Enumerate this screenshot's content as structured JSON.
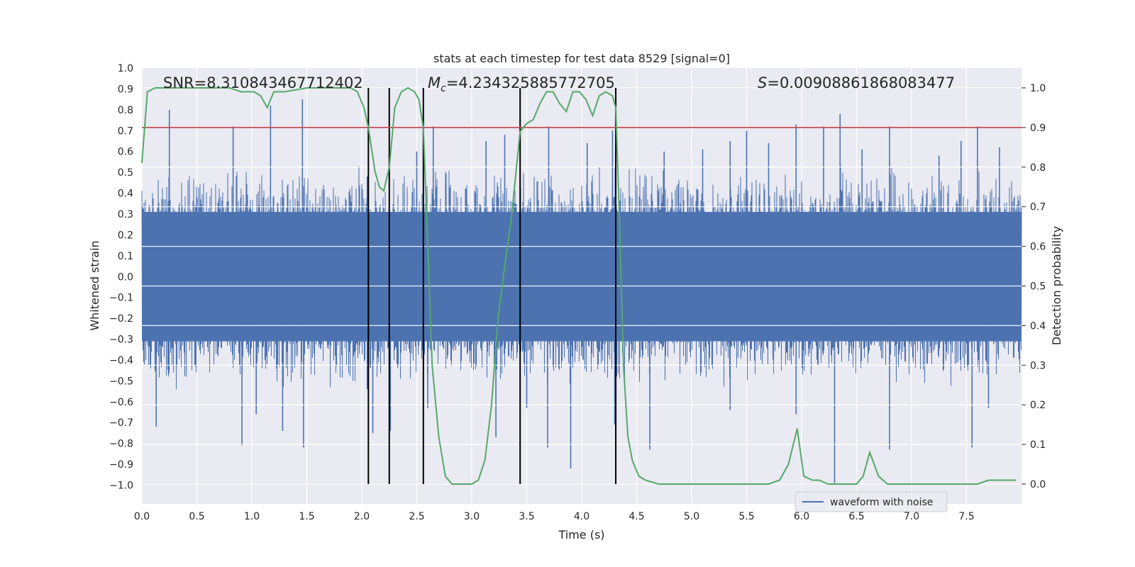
{
  "chart_data": {
    "type": "line",
    "title": "stats at each timestep for test data 8529 [signal=0]",
    "xlabel": "Time (s)",
    "ylabel": "Whitened strain",
    "y2label": "Detection probability",
    "xlim": [
      0.0,
      8.0
    ],
    "ylim": [
      -1.09,
      1.0
    ],
    "y2lim": [
      -0.05,
      1.05
    ],
    "grid": true,
    "x_ticks": [
      "0.0",
      "0.5",
      "1.0",
      "1.5",
      "2.0",
      "2.5",
      "3.0",
      "3.5",
      "4.0",
      "4.5",
      "5.0",
      "5.5",
      "6.0",
      "6.5",
      "7.0",
      "7.5"
    ],
    "y_ticks": [
      "1.0",
      "0.9",
      "0.8",
      "0.7",
      "0.6",
      "0.5",
      "0.4",
      "0.3",
      "0.2",
      "0.1",
      "0.0",
      "−0.1",
      "−0.2",
      "−0.3",
      "−0.4",
      "−0.5",
      "−0.6",
      "−0.7",
      "−0.8",
      "−0.9",
      "−1.0"
    ],
    "y2_ticks": [
      "1.0",
      "0.9",
      "0.8",
      "0.7",
      "0.6",
      "0.5",
      "0.4",
      "0.3",
      "0.2",
      "0.1",
      "0.0"
    ],
    "annotations": {
      "snr": "SNR=8.310843467712402",
      "mc_symbol": "M",
      "mc_sub": "c",
      "mc_value": "=4.234325885772705",
      "s_symbol": "S",
      "s_value": "=0.00908861868083477"
    },
    "legend": {
      "position": "lower-right",
      "entries": [
        "waveform with noise"
      ]
    },
    "threshold": {
      "value": 0.9,
      "axis": "y2",
      "color": "#c44e52"
    },
    "vertical_lines": [
      2.06,
      2.25,
      2.56,
      3.44,
      4.31
    ],
    "vline_color": "#000000",
    "series": [
      {
        "name": "waveform with noise",
        "axis": "y",
        "color": "#4c72b0",
        "envelope_typical": 0.33,
        "spikes_pos": [
          [
            0.25,
            0.8
          ],
          [
            0.83,
            0.72
          ],
          [
            1.17,
            0.82
          ],
          [
            1.46,
            0.85
          ],
          [
            2.05,
            0.48
          ],
          [
            2.5,
            0.6
          ],
          [
            2.65,
            0.72
          ],
          [
            3.13,
            0.65
          ],
          [
            3.3,
            0.68
          ],
          [
            3.7,
            0.72
          ],
          [
            4.05,
            0.64
          ],
          [
            4.28,
            0.7
          ],
          [
            4.75,
            0.6
          ],
          [
            5.1,
            0.61
          ],
          [
            5.35,
            0.65
          ],
          [
            5.5,
            0.7
          ],
          [
            5.7,
            0.64
          ],
          [
            5.95,
            0.73
          ],
          [
            6.2,
            0.72
          ],
          [
            6.35,
            0.78
          ],
          [
            6.55,
            0.61
          ],
          [
            6.8,
            0.72
          ],
          [
            7.25,
            0.58
          ],
          [
            7.45,
            0.65
          ],
          [
            7.6,
            0.72
          ],
          [
            7.8,
            0.62
          ]
        ],
        "spikes_neg": [
          [
            0.13,
            -0.72
          ],
          [
            0.91,
            -0.81
          ],
          [
            1.04,
            -0.66
          ],
          [
            1.28,
            -0.74
          ],
          [
            1.47,
            -0.82
          ],
          [
            2.05,
            -0.54
          ],
          [
            2.1,
            -0.75
          ],
          [
            2.26,
            -0.74
          ],
          [
            2.6,
            -0.63
          ],
          [
            3.22,
            -0.77
          ],
          [
            3.5,
            -0.63
          ],
          [
            3.69,
            -0.82
          ],
          [
            3.9,
            -0.92
          ],
          [
            4.3,
            -0.71
          ],
          [
            4.62,
            -0.83
          ],
          [
            5.35,
            -0.64
          ],
          [
            5.95,
            -0.66
          ],
          [
            6.3,
            -0.99
          ],
          [
            6.8,
            -0.83
          ],
          [
            7.55,
            -0.82
          ],
          [
            7.7,
            -0.63
          ]
        ]
      },
      {
        "name": "Detection probability",
        "axis": "y2",
        "color": "#55a868",
        "x": [
          0.0,
          0.05,
          0.12,
          0.2,
          0.4,
          0.6,
          0.8,
          0.9,
          0.96,
          1.02,
          1.08,
          1.14,
          1.2,
          1.3,
          1.5,
          1.7,
          1.9,
          1.96,
          2.02,
          2.06,
          2.12,
          2.16,
          2.2,
          2.25,
          2.3,
          2.36,
          2.42,
          2.48,
          2.52,
          2.56,
          2.6,
          2.64,
          2.7,
          2.76,
          2.82,
          2.9,
          3.0,
          3.06,
          3.12,
          3.18,
          3.24,
          3.3,
          3.36,
          3.4,
          3.44,
          3.5,
          3.56,
          3.62,
          3.68,
          3.74,
          3.8,
          3.86,
          3.92,
          3.98,
          4.04,
          4.1,
          4.16,
          4.22,
          4.28,
          4.31,
          4.34,
          4.38,
          4.42,
          4.46,
          4.52,
          4.58,
          4.7,
          5.0,
          5.2,
          5.5,
          5.7,
          5.8,
          5.88,
          5.96,
          6.02,
          6.1,
          6.16,
          6.24,
          6.3,
          6.4,
          6.5,
          6.56,
          6.62,
          6.7,
          6.78,
          6.9,
          7.2,
          7.4,
          7.5,
          7.6,
          7.7,
          7.8,
          7.95
        ],
        "values": [
          0.81,
          0.99,
          1.0,
          1.0,
          1.0,
          1.0,
          1.0,
          0.99,
          0.99,
          0.99,
          0.98,
          0.95,
          0.99,
          0.99,
          1.0,
          1.0,
          1.0,
          0.99,
          0.95,
          0.9,
          0.79,
          0.75,
          0.74,
          0.8,
          0.95,
          0.99,
          1.0,
          0.99,
          0.97,
          0.9,
          0.6,
          0.3,
          0.12,
          0.02,
          0.0,
          0.0,
          0.0,
          0.01,
          0.06,
          0.2,
          0.42,
          0.55,
          0.67,
          0.78,
          0.89,
          0.91,
          0.92,
          0.96,
          0.99,
          0.99,
          0.96,
          0.94,
          0.99,
          0.99,
          0.97,
          0.93,
          0.98,
          0.99,
          0.98,
          0.95,
          0.7,
          0.3,
          0.12,
          0.06,
          0.02,
          0.01,
          0.0,
          0.0,
          0.0,
          0.0,
          0.0,
          0.01,
          0.05,
          0.14,
          0.02,
          0.01,
          0.01,
          0.0,
          0.0,
          0.0,
          0.0,
          0.02,
          0.08,
          0.02,
          0.0,
          0.0,
          0.0,
          0.0,
          0.0,
          0.0,
          0.01,
          0.01,
          0.01
        ]
      }
    ]
  }
}
